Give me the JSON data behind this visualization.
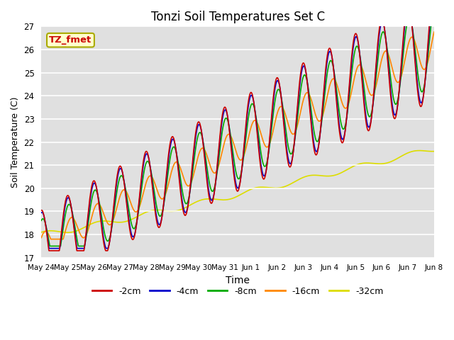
{
  "title": "Tonzi Soil Temperatures Set C",
  "xlabel": "Time",
  "ylabel": "Soil Temperature (C)",
  "ylim": [
    17.0,
    27.0
  ],
  "yticks": [
    17.0,
    18.0,
    19.0,
    20.0,
    21.0,
    22.0,
    23.0,
    24.0,
    25.0,
    26.0,
    27.0
  ],
  "xtick_labels": [
    "May 24",
    "May 25",
    "May 26",
    "May 27",
    "May 28",
    "May 29",
    "May 30",
    "May 31",
    "Jun 1",
    "Jun 2",
    "Jun 3",
    "Jun 4",
    "Jun 5",
    "Jun 6",
    "Jun 7",
    "Jun 8"
  ],
  "legend_labels": [
    "-2cm",
    "-4cm",
    "-8cm",
    "-16cm",
    "-32cm"
  ],
  "colors": [
    "#cc0000",
    "#0000cc",
    "#00aa00",
    "#ff8800",
    "#dddd00"
  ],
  "annotation_text": "TZ_fmet",
  "annotation_color": "#cc0000",
  "annotation_bg": "#ffffcc",
  "bg_color": "#e0e0e0",
  "fig_bg_color": "#ffffff",
  "linewidth": 1.2,
  "n_points": 2000,
  "start_day": 0,
  "end_day": 15.0,
  "base_temp": 17.5,
  "trend": 0.58,
  "amplitude_2cm": 1.55,
  "amplitude_4cm": 1.45,
  "amplitude_8cm": 1.15,
  "amplitude_16cm": 0.55,
  "phase_shift_4cm": 0.08,
  "phase_shift_8cm": 0.28,
  "phase_shift_16cm": 0.85,
  "period": 1.0
}
